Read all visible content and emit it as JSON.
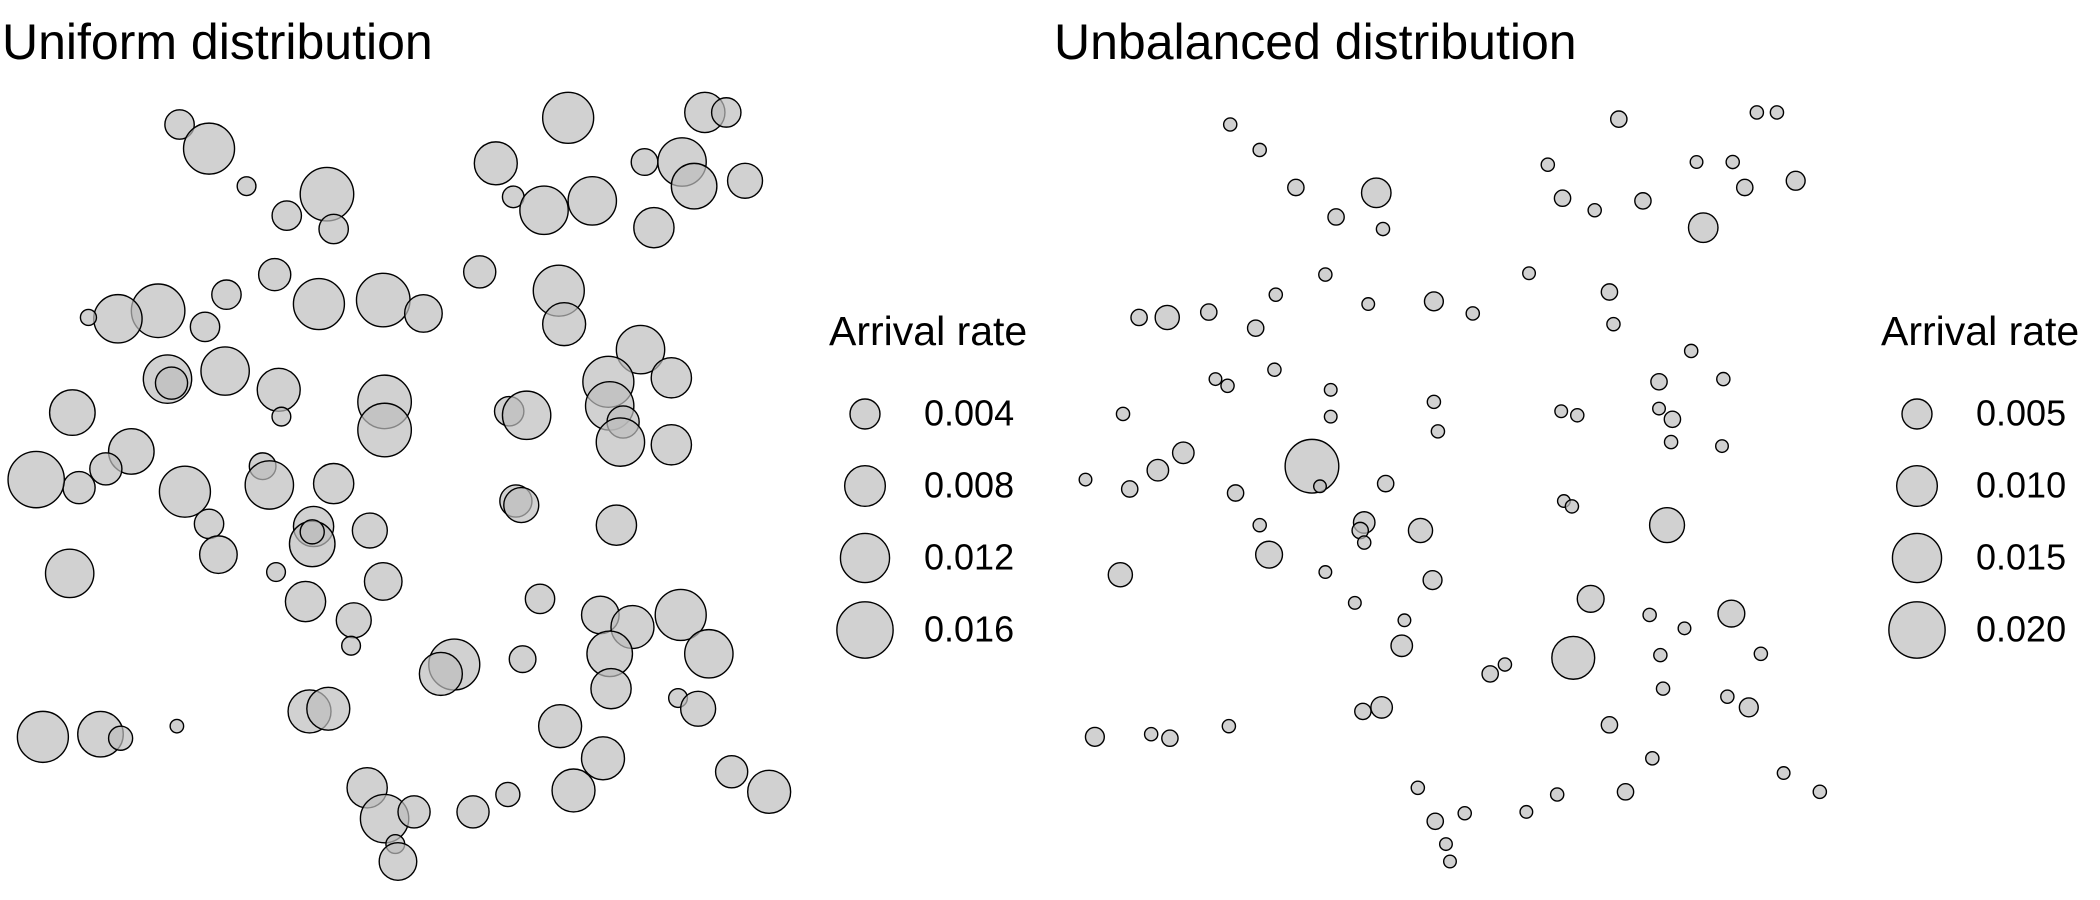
{
  "chart_data": [
    {
      "type": "scatter",
      "title": "Uniform distribution",
      "color": "#bebebe",
      "alpha": 0.7,
      "stroke": "#000000",
      "xlim": [
        0,
        600
      ],
      "ylim": [
        0,
        600
      ],
      "x": [
        134,
        156,
        184,
        214,
        244,
        249,
        370,
        383,
        406,
        424,
        442,
        488,
        481,
        509,
        518,
        526,
        542,
        556,
        358,
        417,
        421,
        205,
        238,
        286,
        316,
        169,
        153,
        118,
        88,
        66,
        478,
        454,
        501,
        455,
        465,
        463,
        501,
        168,
        125,
        128,
        208,
        210,
        287,
        287,
        380,
        393,
        54,
        98,
        79,
        59,
        27,
        138,
        196,
        201,
        249,
        156,
        163,
        234,
        233,
        233,
        276,
        206,
        286,
        228,
        385,
        389,
        460,
        52,
        264,
        262,
        403,
        448,
        472,
        508,
        455,
        529,
        339,
        329,
        390,
        456,
        506,
        521,
        231,
        245,
        418,
        32,
        75,
        90,
        132,
        450,
        546,
        574,
        274,
        428,
        379,
        353,
        287,
        309,
        295,
        297
      ],
      "y": [
        575,
        557,
        529,
        507,
        523,
        497,
        546,
        521,
        511,
        580,
        518,
        498,
        547,
        547,
        529,
        584,
        584,
        533,
        465,
        451,
        426,
        463,
        441,
        444,
        434,
        448,
        424,
        436,
        430,
        431,
        407,
        383,
        386,
        365,
        353,
        338,
        336,
        391,
        385,
        382,
        377,
        357,
        368,
        347,
        361,
        358,
        360,
        331,
        318,
        304,
        310,
        301,
        320,
        306,
        307,
        277,
        254,
        275,
        262,
        271,
        272,
        241,
        234,
        219,
        294,
        291,
        276,
        240,
        205,
        186,
        221,
        209,
        200,
        209,
        180,
        180,
        172,
        165,
        176,
        154,
        147,
        139,
        137,
        139,
        126,
        118,
        120,
        117,
        126,
        102,
        92,
        77,
        80,
        78,
        75,
        62,
        57,
        62,
        38,
        25
      ],
      "sizes": [
        0.0038,
        0.013,
        0.0011,
        0.0038,
        0.0144,
        0.0038,
        0.009,
        0.0017,
        0.0116,
        0.013,
        0.0116,
        0.0078,
        0.003,
        0.0116,
        0.0102,
        0.0078,
        0.0038,
        0.0057,
        0.0047,
        0.013,
        0.009,
        0.0047,
        0.013,
        0.0144,
        0.0067,
        0.0038,
        0.0038,
        0.0144,
        0.0116,
        0.0006,
        0.0116,
        0.013,
        0.0078,
        0.0116,
        0.0047,
        0.0116,
        0.0078,
        0.0116,
        0.0116,
        0.0047,
        0.009,
        0.0011,
        0.0144,
        0.0144,
        0.0038,
        0.0116,
        0.0102,
        0.0102,
        0.0047,
        0.0047,
        0.016,
        0.013,
        0.003,
        0.0116,
        0.0078,
        0.0038,
        0.0067,
        0.0078,
        0.0102,
        0.0023,
        0.0057,
        0.0011,
        0.0067,
        0.0078,
        0.0047,
        0.0057,
        0.0078,
        0.0116,
        0.0057,
        0.0011,
        0.0038,
        0.0067,
        0.009,
        0.013,
        0.0102,
        0.0116,
        0.013,
        0.009,
        0.003,
        0.0078,
        0.0011,
        0.0057,
        0.009,
        0.009,
        0.009,
        0.013,
        0.0102,
        0.0023,
        0.0002,
        0.009,
        0.0047,
        0.009,
        0.0078,
        0.009,
        0.0023,
        0.0047,
        0.0116,
        0.0047,
        0.0011,
        0.0067
      ],
      "size_legend": {
        "title": "Arrival rate",
        "breaks": [
          0.004,
          0.008,
          0.012,
          0.016
        ]
      }
    },
    {
      "type": "scatter",
      "title": "Unbalanced distribution",
      "color": "#bebebe",
      "alpha": 0.7,
      "stroke": "#000000",
      "xlim": [
        785,
        1385
      ],
      "ylim": [
        0,
        600
      ],
      "x": [
        918,
        940,
        967,
        997,
        1027,
        1032,
        1208,
        1311,
        1326,
        1155,
        1166,
        1190,
        1226,
        1266,
        1293,
        1302,
        1340,
        1271,
        989,
        1141,
        952,
        1021,
        1070,
        1099,
        1201,
        1204,
        850,
        871,
        902,
        937,
        951,
        907,
        916,
        993,
        1262,
        1286,
        1238,
        838,
        993,
        1070,
        1073,
        1165,
        1177,
        1238,
        1248,
        1247,
        1285,
        810,
        843,
        864,
        883,
        979,
        985,
        1034,
        922,
        940,
        947,
        1018,
        1015,
        1018,
        1060,
        1167,
        1173,
        1244,
        836,
        989,
        1069,
        1011,
        1048,
        1046,
        1187,
        1231,
        1257,
        1292,
        1314,
        1239,
        1174,
        1112,
        1123,
        1241,
        1289,
        1305,
        1017,
        1031,
        1201,
        817,
        859,
        873,
        917,
        1233,
        1331,
        1358,
        1058,
        1213,
        1162,
        1139,
        1093,
        1071,
        1079,
        1082
      ],
      "y": [
        575,
        556,
        528,
        506,
        524,
        497,
        579,
        584,
        584,
        545,
        520,
        511,
        518,
        547,
        547,
        528,
        533,
        498,
        463,
        464,
        448,
        441,
        443,
        434,
        450,
        426,
        431,
        431,
        435,
        423,
        392,
        385,
        380,
        377,
        406,
        385,
        383,
        359,
        357,
        368,
        346,
        361,
        358,
        363,
        355,
        338,
        335,
        310,
        303,
        317,
        330,
        320,
        305,
        307,
        300,
        276,
        254,
        278,
        272,
        263,
        272,
        294,
        290,
        276,
        239,
        241,
        235,
        218,
        205,
        186,
        221,
        209,
        199,
        210,
        180,
        179,
        177,
        165,
        172,
        154,
        148,
        140,
        137,
        140,
        127,
        118,
        120,
        117,
        126,
        102,
        91,
        77,
        80,
        77,
        75,
        62,
        61,
        55,
        38,
        25
      ],
      "sizes": [
        0.0002,
        0.0002,
        0.0008,
        0.0008,
        0.0048,
        0.0002,
        0.0008,
        0.0002,
        0.0002,
        0.0002,
        0.0008,
        0.0002,
        0.0008,
        0.0001,
        0.0002,
        0.0008,
        0.0014,
        0.0048,
        0.0002,
        0.0001,
        0.0002,
        0.0001,
        0.0014,
        0.0002,
        0.0008,
        0.0002,
        0.0008,
        0.0029,
        0.0008,
        0.0008,
        0.0002,
        0.0001,
        0.0002,
        0.0001,
        0.0002,
        0.0002,
        0.0008,
        0.0002,
        0.0001,
        0.0002,
        0.0002,
        0.0001,
        0.0002,
        0.0001,
        0.0008,
        0.0002,
        0.0001,
        0.0001,
        0.0008,
        0.0021,
        0.0021,
        0.0181,
        0.0001,
        0.0008,
        0.0008,
        0.0002,
        0.0038,
        0.0021,
        0.0008,
        0.0002,
        0.0029,
        0.0001,
        0.0002,
        0.0071,
        0.0029,
        0.0001,
        0.0014,
        0.0001,
        0.0001,
        0.0021,
        0.0038,
        0.0002,
        0.0001,
        0.0038,
        0.0002,
        0.0002,
        0.0112,
        0.0008,
        0.0002,
        0.0002,
        0.0002,
        0.0014,
        0.0008,
        0.0021,
        0.0008,
        0.0014,
        0.0002,
        0.0008,
        0.0002,
        0.0002,
        0.0001,
        0.0002,
        0.0002,
        0.0008,
        0.0002,
        0.0001,
        0.0002,
        0.0008,
        0.0001,
        0.0001
      ],
      "size_legend": {
        "title": "Arrival rate",
        "breaks": [
          0.005,
          {
            "value": 0.01,
            "label": "0.010"
          },
          0.015,
          {
            "value": 0.02,
            "label": "0.020"
          }
        ]
      }
    }
  ]
}
